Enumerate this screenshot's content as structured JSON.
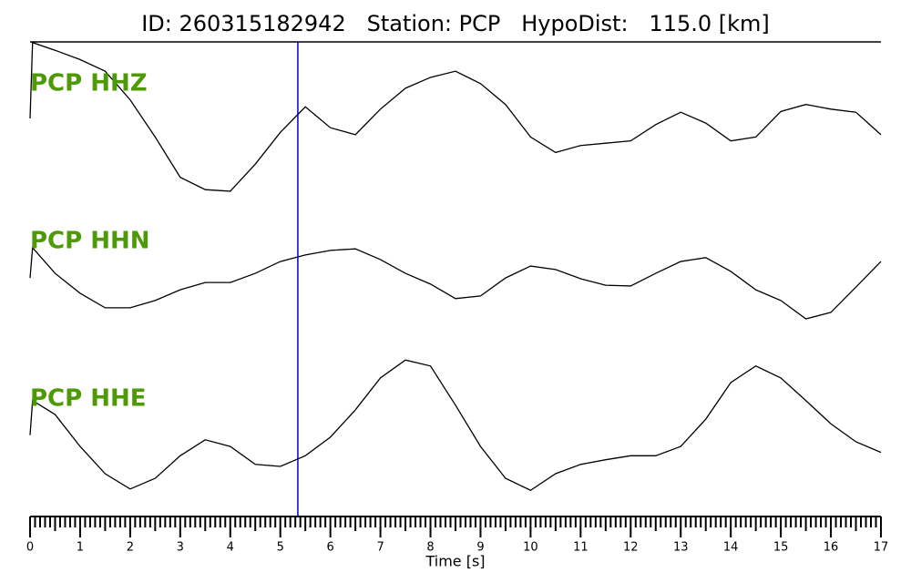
{
  "chart_data": {
    "type": "line",
    "title": "ID: 260315182942   Station: PCP   HypoDist:   115.0 [km]",
    "x_label": "Time [s]",
    "xlim": [
      0,
      17
    ],
    "xticks": [
      0,
      1,
      2,
      3,
      4,
      5,
      6,
      7,
      8,
      9,
      10,
      11,
      12,
      13,
      14,
      15,
      16,
      17
    ],
    "x": [
      0,
      0.05,
      0.5,
      1,
      1.5,
      2,
      2.5,
      3,
      3.5,
      4,
      4.5,
      5,
      5.5,
      6,
      6.5,
      7,
      7.5,
      8,
      8.5,
      9,
      9.5,
      10,
      10.5,
      11,
      11.5,
      12,
      12.5,
      13,
      13.5,
      14,
      14.5,
      15,
      15.5,
      16,
      16.5,
      17
    ],
    "label_color": "#4e9a06",
    "marker": {
      "x": 5.35,
      "color": "#0000cc"
    },
    "series": [
      {
        "name": "PCP HHZ",
        "color": "#000000",
        "values": [
          0,
          0.98,
          0.88,
          0.76,
          0.61,
          0.24,
          -0.24,
          -0.76,
          -0.92,
          -0.94,
          -0.59,
          -0.18,
          0.15,
          -0.12,
          -0.21,
          0.12,
          0.39,
          0.53,
          0.61,
          0.45,
          0.18,
          -0.24,
          -0.44,
          -0.35,
          -0.32,
          -0.29,
          -0.08,
          0.08,
          -0.06,
          -0.29,
          -0.24,
          0.09,
          0.18,
          0.12,
          0.08,
          -0.21
        ]
      },
      {
        "name": "PCP HHN",
        "color": "#000000",
        "values": [
          0.14,
          0.93,
          0.26,
          -0.26,
          -0.64,
          -0.64,
          -0.45,
          -0.17,
          0.02,
          0.02,
          0.26,
          0.57,
          0.74,
          0.86,
          0.9,
          0.62,
          0.26,
          -0.02,
          -0.4,
          -0.33,
          0.14,
          0.45,
          0.36,
          0.12,
          -0.05,
          -0.07,
          0.26,
          0.57,
          0.67,
          0.31,
          -0.17,
          -0.45,
          -0.93,
          -0.76,
          -0.1,
          0.57
        ]
      },
      {
        "name": "PCP HHE",
        "color": "#000000",
        "values": [
          -0.16,
          0.36,
          0.15,
          -0.33,
          -0.74,
          -0.97,
          -0.81,
          -0.47,
          -0.23,
          -0.33,
          -0.6,
          -0.63,
          -0.47,
          -0.19,
          0.22,
          0.7,
          0.97,
          0.88,
          0.29,
          -0.33,
          -0.81,
          -0.99,
          -0.74,
          -0.6,
          -0.53,
          -0.47,
          -0.47,
          -0.33,
          0.08,
          0.63,
          0.88,
          0.7,
          0.36,
          0.01,
          -0.26,
          -0.42
        ]
      }
    ]
  }
}
